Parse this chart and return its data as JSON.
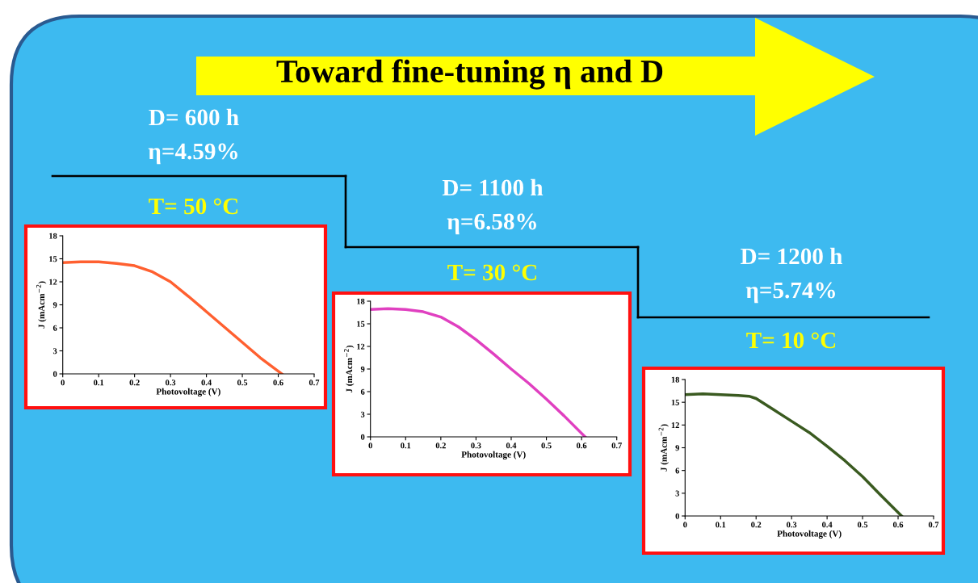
{
  "chart_data": [
    {
      "type": "other",
      "title": "Toward fine-tuning η and D"
    },
    {
      "type": "line",
      "title": "T= 50 °C",
      "annotations": [
        "D= 600 h",
        "η=4.59%"
      ],
      "xlabel": "Photovoltage (V)",
      "ylabel": "J (mAcm$^{−2}$)",
      "series": [
        {
          "color": "#ff6030",
          "x": [
            0,
            0.05,
            0.1,
            0.15,
            0.2,
            0.25,
            0.3,
            0.35,
            0.4,
            0.45,
            0.5,
            0.55,
            0.61
          ],
          "values": [
            14.5,
            14.6,
            14.6,
            14.4,
            14.1,
            13.3,
            12.0,
            10.1,
            8.1,
            6.1,
            4.1,
            2.1,
            0
          ]
        }
      ],
      "xlim": [
        0,
        0.7
      ],
      "xticks": [
        0,
        0.1,
        0.2,
        0.3,
        0.4,
        0.5,
        0.6,
        0.7
      ],
      "ylim": [
        0,
        18
      ],
      "yticks": [
        0,
        3,
        6,
        9,
        12,
        15,
        18
      ],
      "grid": false,
      "legend": false,
      "marker": "none",
      "line_style": "solid"
    },
    {
      "type": "line",
      "title": "T= 30 °C",
      "annotations": [
        "D= 1100 h",
        "η=6.58%"
      ],
      "xlabel": "Photovoltage (V)",
      "ylabel": "J (mAcm$^{−2}$)",
      "series": [
        {
          "color": "#e040c0",
          "x": [
            0,
            0.05,
            0.1,
            0.15,
            0.2,
            0.25,
            0.3,
            0.35,
            0.4,
            0.45,
            0.5,
            0.55,
            0.61
          ],
          "values": [
            16.9,
            17.0,
            16.9,
            16.6,
            15.9,
            14.6,
            12.9,
            11.0,
            9.0,
            7.1,
            5.0,
            2.8,
            0
          ]
        }
      ],
      "xlim": [
        0,
        0.7
      ],
      "xticks": [
        0,
        0.1,
        0.2,
        0.3,
        0.4,
        0.5,
        0.6,
        0.7
      ],
      "ylim": [
        0,
        18
      ],
      "yticks": [
        0,
        3,
        6,
        9,
        12,
        15,
        18
      ],
      "grid": false,
      "legend": false,
      "marker": "none",
      "line_style": "solid"
    },
    {
      "type": "line",
      "title": "T= 10 °C",
      "annotations": [
        "D= 1200 h",
        "η=5.74%"
      ],
      "xlabel": "Photovoltage (V)",
      "ylabel": "J (mAcm$^{−2}$)",
      "series": [
        {
          "color": "#3a5a20",
          "x": [
            0,
            0.05,
            0.1,
            0.15,
            0.18,
            0.2,
            0.25,
            0.3,
            0.35,
            0.4,
            0.45,
            0.5,
            0.55,
            0.61
          ],
          "values": [
            16.0,
            16.1,
            16.0,
            15.9,
            15.8,
            15.5,
            14.0,
            12.5,
            11.0,
            9.2,
            7.3,
            5.2,
            2.8,
            0
          ]
        }
      ],
      "xlim": [
        0,
        0.7
      ],
      "xticks": [
        0,
        0.1,
        0.2,
        0.3,
        0.4,
        0.5,
        0.6,
        0.7
      ],
      "ylim": [
        0,
        18
      ],
      "yticks": [
        0,
        3,
        6,
        9,
        12,
        15,
        18
      ],
      "grid": false,
      "legend": false,
      "marker": "none",
      "line_style": "solid"
    }
  ]
}
